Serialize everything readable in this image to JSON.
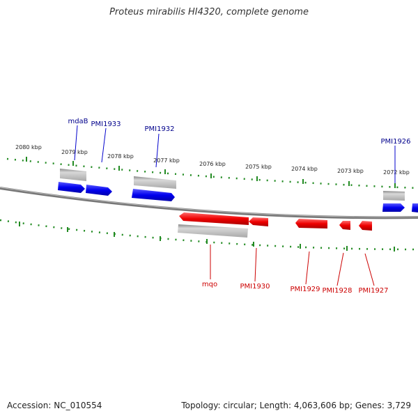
{
  "title": "Proteus mirabilis HI4320, complete genome",
  "footer": {
    "accession": "Accession: NC_010554",
    "topology": "Topology: circular; Length: 4,063,606 bp; Genes: 3,729"
  },
  "ticks": [
    "2080 kbp",
    "2079 kbp",
    "2078 kbp",
    "2077 kbp",
    "2076 kbp",
    "2075 kbp",
    "2074 kbp",
    "2073 kbp",
    "2072 kbp"
  ],
  "forward_genes": [
    "mdaB",
    "PMI1933",
    "PMI1932",
    "PMI1926"
  ],
  "reverse_genes": [
    "mqo",
    "PMI1930",
    "PMI1929",
    "PMI1928",
    "PMI1927"
  ],
  "colors": {
    "forward": "#0000ff",
    "reverse": "#ff0000",
    "forward_label": "#00008b",
    "reverse_label": "#cc0000",
    "tick": "#228b22",
    "backbone": "#808080",
    "grey_feature": "#bdbdbd"
  }
}
